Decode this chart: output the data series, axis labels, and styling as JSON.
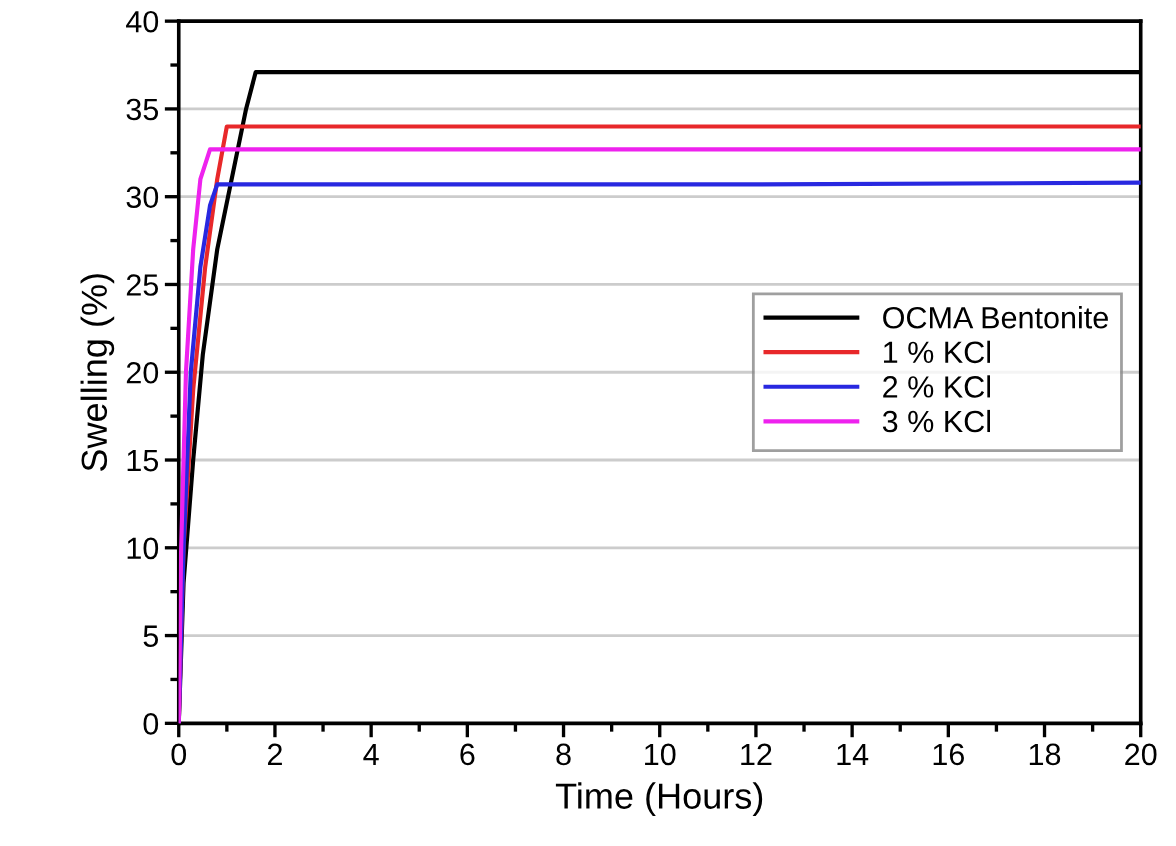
{
  "chart_data": {
    "type": "line",
    "xlabel": "Time (Hours)",
    "ylabel": "Swelling (%)",
    "xlim": [
      0,
      20
    ],
    "ylim": [
      0,
      40
    ],
    "xticks": [
      0,
      {
        "value": 1,
        "label": null
      },
      2,
      {
        "value": 3,
        "label": null
      },
      4,
      {
        "value": 5,
        "label": null
      },
      6,
      {
        "value": 7,
        "label": null
      },
      8,
      {
        "value": 9,
        "label": null
      },
      10,
      {
        "value": 11,
        "label": null
      },
      12,
      {
        "value": 13,
        "label": null
      },
      14,
      {
        "value": 15,
        "label": null
      },
      16,
      {
        "value": 17,
        "label": null
      },
      18,
      {
        "value": 19,
        "label": null
      },
      20
    ],
    "yticks": [
      0,
      {
        "value": 2.5,
        "label": null
      },
      5,
      {
        "value": 7.5,
        "label": null
      },
      10,
      {
        "value": 12.5,
        "label": null
      },
      15,
      {
        "value": 17.5,
        "label": null
      },
      20,
      {
        "value": 22.5,
        "label": null
      },
      25,
      {
        "value": 27.5,
        "label": null
      },
      30,
      {
        "value": 32.5,
        "label": null
      },
      35,
      {
        "value": 37.5,
        "label": null
      },
      40
    ],
    "grid": "y",
    "legend": "right",
    "marker": "none",
    "line_style": "solid",
    "series": [
      {
        "name": "OCMA Bentonite",
        "color": "#000000",
        "x": [
          0,
          0.1,
          0.3,
          0.5,
          0.8,
          1.1,
          1.4,
          1.6,
          6,
          12,
          20
        ],
        "values": [
          0,
          8,
          15,
          21,
          27,
          31,
          35,
          37.1,
          37.1,
          37.1,
          37.1
        ]
      },
      {
        "name": "1 % KCl",
        "color": "#e8282a",
        "x": [
          0,
          0.1,
          0.3,
          0.55,
          0.8,
          1.0,
          6,
          12,
          20
        ],
        "values": [
          0,
          10,
          19,
          26,
          31,
          34,
          34,
          34,
          34
        ]
      },
      {
        "name": "2 % KCl",
        "color": "#2828e0",
        "x": [
          0,
          0.1,
          0.25,
          0.45,
          0.65,
          0.8,
          6,
          12,
          20
        ],
        "values": [
          0,
          10,
          20,
          26,
          29.5,
          30.7,
          30.7,
          30.7,
          30.8
        ]
      },
      {
        "name": "3 % KCl",
        "color": "#ee22ee",
        "x": [
          0,
          0.05,
          0.15,
          0.3,
          0.45,
          0.65,
          6,
          12,
          20
        ],
        "values": [
          0,
          10,
          20,
          27,
          31,
          32.7,
          32.7,
          32.7,
          32.7
        ]
      }
    ]
  }
}
